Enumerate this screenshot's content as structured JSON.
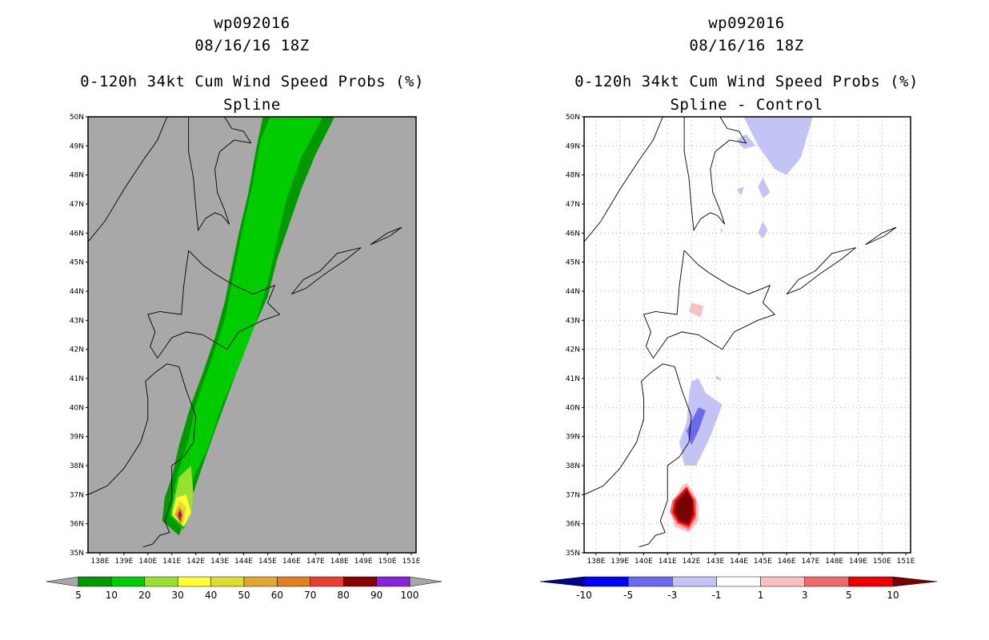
{
  "chart_data": [
    {
      "type": "heatmap",
      "storm_id": "wp092016",
      "datetime": "08/16/16 18Z",
      "title": "0-120h 34kt Cum Wind Speed Probs (%)",
      "subtitle": "Spline",
      "xlim": [
        137.5,
        151.2
      ],
      "ylim": [
        35,
        50
      ],
      "lat_ticks": [
        "35N",
        "36N",
        "37N",
        "38N",
        "39N",
        "40N",
        "41N",
        "42N",
        "43N",
        "44N",
        "45N",
        "46N",
        "47N",
        "48N",
        "49N",
        "50N"
      ],
      "lon_ticks": [
        "138E",
        "139E",
        "140E",
        "141E",
        "142E",
        "143E",
        "144E",
        "145E",
        "146E",
        "147E",
        "148E",
        "149E",
        "150E",
        "151E"
      ],
      "grid": false,
      "background_color": "#a8a8a8",
      "colorbar": {
        "labels": [
          "5",
          "10",
          "20",
          "30",
          "40",
          "50",
          "60",
          "70",
          "80",
          "90",
          "100"
        ],
        "colors": [
          "#009900",
          "#00cc00",
          "#99e033",
          "#ffff33",
          "#dddd33",
          "#e0a830",
          "#e08020",
          "#e84030",
          "#880000",
          "#8822dd"
        ]
      },
      "contours": [
        {
          "level": 5,
          "color": "#009900",
          "points": [
            [
              141.3,
              35.6
            ],
            [
              140.6,
              36.1
            ],
            [
              140.7,
              36.9
            ],
            [
              141.0,
              37.6
            ],
            [
              141.3,
              38.7
            ],
            [
              141.8,
              40.1
            ],
            [
              142.3,
              41.2
            ],
            [
              142.8,
              42.4
            ],
            [
              143.2,
              43.6
            ],
            [
              143.5,
              44.8
            ],
            [
              143.8,
              46.0
            ],
            [
              144.2,
              47.4
            ],
            [
              144.5,
              48.8
            ],
            [
              144.8,
              50.0
            ],
            [
              147.8,
              50.0
            ],
            [
              147.0,
              48.7
            ],
            [
              146.4,
              47.5
            ],
            [
              145.9,
              46.3
            ],
            [
              145.4,
              45.1
            ],
            [
              145.0,
              43.8
            ],
            [
              144.3,
              42.5
            ],
            [
              143.6,
              41.0
            ],
            [
              142.8,
              39.2
            ],
            [
              142.2,
              37.8
            ],
            [
              141.8,
              36.8
            ],
            [
              141.6,
              36.2
            ]
          ]
        },
        {
          "level": 10,
          "color": "#00cc00",
          "points": [
            [
              141.5,
              35.8
            ],
            [
              140.9,
              36.3
            ],
            [
              141.2,
              37.6
            ],
            [
              141.7,
              38.9
            ],
            [
              142.0,
              40.1
            ],
            [
              142.6,
              41.5
            ],
            [
              143.2,
              43.0
            ],
            [
              143.6,
              44.7
            ],
            [
              144.0,
              46.3
            ],
            [
              144.4,
              47.8
            ],
            [
              144.7,
              49.2
            ],
            [
              145.1,
              50.0
            ],
            [
              147.3,
              50.0
            ],
            [
              146.4,
              48.6
            ],
            [
              145.8,
              47.2
            ],
            [
              145.4,
              45.8
            ],
            [
              145.0,
              44.3
            ],
            [
              144.5,
              42.9
            ],
            [
              143.9,
              41.6
            ],
            [
              143.1,
              40.1
            ],
            [
              142.5,
              38.6
            ],
            [
              141.9,
              37.6
            ],
            [
              141.8,
              36.6
            ]
          ]
        },
        {
          "level": 20,
          "color": "#99e033",
          "points": [
            [
              141.5,
              35.9
            ],
            [
              141.0,
              36.4
            ],
            [
              141.3,
              37.6
            ],
            [
              141.8,
              38.0
            ],
            [
              141.9,
              37.0
            ],
            [
              141.8,
              36.3
            ]
          ]
        },
        {
          "level": 30,
          "color": "#ffff33",
          "points": [
            [
              141.5,
              35.9
            ],
            [
              141.0,
              36.3
            ],
            [
              141.2,
              36.9
            ],
            [
              141.6,
              37.0
            ],
            [
              141.8,
              36.4
            ]
          ]
        },
        {
          "level": 40,
          "color": "#dddd33",
          "points": [
            [
              141.5,
              36.0
            ],
            [
              141.1,
              36.3
            ],
            [
              141.3,
              36.8
            ],
            [
              141.6,
              36.6
            ]
          ]
        },
        {
          "level": 50,
          "color": "#e0a830",
          "points": [
            [
              141.4,
              36.0
            ],
            [
              141.1,
              36.3
            ],
            [
              141.3,
              36.6
            ],
            [
              141.5,
              36.4
            ]
          ]
        },
        {
          "level": 60,
          "color": "#e08020",
          "points": [
            [
              141.4,
              36.0
            ],
            [
              141.2,
              36.3
            ],
            [
              141.35,
              36.55
            ],
            [
              141.45,
              36.3
            ]
          ]
        },
        {
          "level": 70,
          "color": "#e84030",
          "points": [
            [
              141.35,
              36.05
            ],
            [
              141.25,
              36.3
            ],
            [
              141.35,
              36.5
            ],
            [
              141.42,
              36.3
            ]
          ]
        },
        {
          "level": 80,
          "color": "#880000",
          "points": [
            [
              141.33,
              36.1
            ],
            [
              141.27,
              36.3
            ],
            [
              141.34,
              36.45
            ],
            [
              141.39,
              36.3
            ]
          ]
        },
        {
          "level": 90,
          "color": "#8822dd",
          "points": [
            [
              141.32,
              36.15
            ],
            [
              141.29,
              36.3
            ],
            [
              141.33,
              36.38
            ],
            [
              141.36,
              36.28
            ]
          ]
        }
      ]
    },
    {
      "type": "heatmap",
      "storm_id": "wp092016",
      "datetime": "08/16/16 18Z",
      "title": "0-120h 34kt Cum Wind Speed Probs (%)",
      "subtitle": "Spline - Control",
      "xlim": [
        137.5,
        151.2
      ],
      "ylim": [
        35,
        50
      ],
      "lat_ticks": [
        "35N",
        "36N",
        "37N",
        "38N",
        "39N",
        "40N",
        "41N",
        "42N",
        "43N",
        "44N",
        "45N",
        "46N",
        "47N",
        "48N",
        "49N",
        "50N"
      ],
      "lon_ticks": [
        "138E",
        "139E",
        "140E",
        "141E",
        "142E",
        "143E",
        "144E",
        "145E",
        "146E",
        "147E",
        "148E",
        "149E",
        "150E",
        "151E"
      ],
      "grid": true,
      "background_color": "#ffffff",
      "colorbar": {
        "labels": [
          "-10",
          "-5",
          "-3",
          "-1",
          "1",
          "3",
          "5",
          "10"
        ],
        "colors": [
          "#0000ff",
          "#6a6aee",
          "#c4c4f4",
          "#ffffff",
          "#f8c0c0",
          "#f06a6a",
          "#ee0000"
        ],
        "end_colors": [
          "#000088",
          "#770000"
        ]
      },
      "contours": [
        {
          "level": -1,
          "color": "#c4c4f4",
          "points": [
            [
              144.2,
              50.0
            ],
            [
              144.8,
              49.0
            ],
            [
              145.5,
              48.2
            ],
            [
              146.0,
              48.0
            ],
            [
              146.6,
              48.6
            ],
            [
              147.1,
              50.0
            ]
          ]
        },
        {
          "level": -1,
          "color": "#c4c4f4",
          "points": [
            [
              143.9,
              49.2
            ],
            [
              144.2,
              48.9
            ],
            [
              144.7,
              49.0
            ],
            [
              144.3,
              49.4
            ]
          ]
        },
        {
          "level": -1,
          "color": "#c4c4f4",
          "points": [
            [
              144.8,
              47.6
            ],
            [
              145.0,
              47.2
            ],
            [
              145.3,
              47.4
            ],
            [
              145.0,
              47.9
            ]
          ]
        },
        {
          "level": -1,
          "color": "#c4c4f4",
          "points": [
            [
              143.9,
              47.5
            ],
            [
              144.1,
              47.3
            ],
            [
              144.2,
              47.6
            ]
          ]
        },
        {
          "level": -1,
          "color": "#c4c4f4",
          "points": [
            [
              144.8,
              46.0
            ],
            [
              145.0,
              45.8
            ],
            [
              145.2,
              46.1
            ],
            [
              145.0,
              46.4
            ]
          ]
        },
        {
          "level": -1,
          "color": "#c4c4f4",
          "points": [
            [
              142.3,
              41.0
            ],
            [
              142.6,
              40.5
            ],
            [
              143.3,
              40.1
            ],
            [
              142.8,
              39.0
            ],
            [
              142.2,
              38.0
            ],
            [
              141.7,
              38.0
            ],
            [
              141.5,
              38.8
            ],
            [
              141.8,
              39.5
            ],
            [
              141.9,
              40.4
            ],
            [
              142.0,
              40.9
            ]
          ]
        },
        {
          "level": -1,
          "color": "#c4c4f4",
          "points": [
            [
              143.0,
              41.0
            ],
            [
              143.3,
              40.9
            ],
            [
              143.1,
              41.1
            ]
          ]
        },
        {
          "level": -3,
          "color": "#6a6aee",
          "points": [
            [
              142.0,
              38.7
            ],
            [
              141.8,
              39.2
            ],
            [
              142.3,
              40.0
            ],
            [
              142.6,
              39.9
            ],
            [
              142.3,
              39.2
            ]
          ]
        },
        {
          "level": 1,
          "color": "#f8c0c0",
          "points": [
            [
              142.0,
              43.6
            ],
            [
              141.9,
              43.3
            ],
            [
              142.4,
              43.1
            ],
            [
              142.5,
              43.5
            ]
          ]
        },
        {
          "level": 1,
          "color": "#f8c0c0",
          "points": [
            [
              143.2,
              46.1
            ],
            [
              143.3,
              46.0
            ],
            [
              143.3,
              46.2
            ]
          ]
        },
        {
          "level": 1,
          "color": "#f8c0c0",
          "points": [
            [
              141.8,
              37.4
            ],
            [
              141.6,
              37.3
            ],
            [
              141.3,
              36.8
            ],
            [
              141.1,
              36.5
            ],
            [
              141.3,
              35.9
            ],
            [
              141.9,
              35.7
            ],
            [
              142.3,
              36.1
            ],
            [
              142.3,
              36.7
            ],
            [
              142.0,
              37.2
            ]
          ]
        },
        {
          "level": 3,
          "color": "#f06a6a",
          "points": [
            [
              141.8,
              37.3
            ],
            [
              141.2,
              36.8
            ],
            [
              141.1,
              36.4
            ],
            [
              141.4,
              36.0
            ],
            [
              141.9,
              35.8
            ],
            [
              142.2,
              36.2
            ],
            [
              142.2,
              36.8
            ]
          ]
        },
        {
          "level": 5,
          "color": "#ee0000",
          "points": [
            [
              141.8,
              37.25
            ],
            [
              141.3,
              36.8
            ],
            [
              141.2,
              36.4
            ],
            [
              141.45,
              36.05
            ],
            [
              141.9,
              35.9
            ],
            [
              142.15,
              36.3
            ],
            [
              142.1,
              36.8
            ]
          ]
        },
        {
          "level": 10,
          "color": "#770000",
          "points": [
            [
              141.8,
              37.15
            ],
            [
              141.35,
              36.75
            ],
            [
              141.3,
              36.4
            ],
            [
              141.5,
              36.1
            ],
            [
              141.9,
              36.0
            ],
            [
              142.05,
              36.35
            ],
            [
              142.05,
              36.8
            ]
          ]
        }
      ]
    }
  ]
}
